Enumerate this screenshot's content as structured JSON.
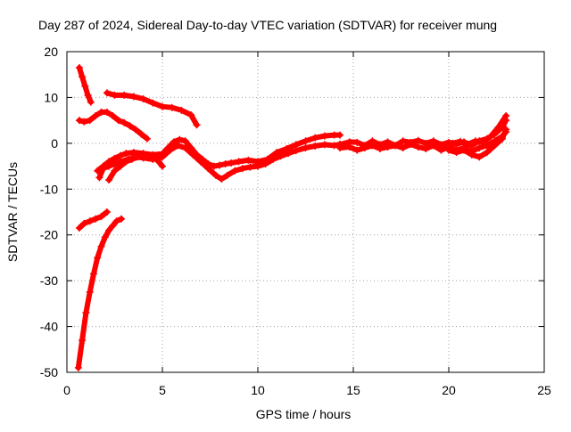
{
  "chart_data": {
    "type": "scatter",
    "title": "Day 287 of 2024, Sidereal Day-to-day VTEC variation (SDTVAR) for receiver mung",
    "xlabel": "GPS time / hours",
    "ylabel": "SDTVAR / TECUs",
    "xlim": [
      0,
      25
    ],
    "ylim": [
      -50,
      20
    ],
    "xticks": [
      0,
      5,
      10,
      15,
      20,
      25
    ],
    "yticks": [
      -50,
      -40,
      -30,
      -20,
      -10,
      0,
      10,
      20
    ],
    "grid": true,
    "legend": "none",
    "colors": {
      "series": "#ff0000",
      "grid": "#a0a0a0",
      "axis": "#000000"
    },
    "series": [
      {
        "x": [
          0.65,
          0.8,
          0.95,
          1.1,
          1.25
        ],
        "y": [
          16.5,
          14.5,
          12.5,
          10.5,
          9.0
        ]
      },
      {
        "x": [
          0.65,
          0.9,
          1.2,
          1.5,
          1.8,
          2.1,
          2.4,
          2.7,
          3.0,
          3.3,
          3.6,
          3.9,
          4.2
        ],
        "y": [
          5.0,
          4.7,
          5.0,
          6.0,
          6.8,
          6.8,
          6.0,
          5.0,
          4.5,
          3.8,
          3.0,
          2.0,
          1.0
        ]
      },
      {
        "x": [
          2.1,
          2.5,
          3.0,
          3.5,
          4.0,
          4.5,
          5.0,
          5.5,
          6.0,
          6.5,
          6.8
        ],
        "y": [
          11.0,
          10.5,
          10.5,
          10.2,
          9.7,
          8.8,
          8.0,
          7.8,
          7.2,
          6.2,
          4.0
        ]
      },
      {
        "x": [
          0.65,
          0.9,
          1.2,
          1.5,
          1.8,
          2.1
        ],
        "y": [
          -18.5,
          -17.5,
          -17.0,
          -16.5,
          -16.0,
          -15.0
        ]
      },
      {
        "x": [
          0.6,
          0.8,
          1.0,
          1.2,
          1.4,
          1.6,
          1.8,
          2.0,
          2.2,
          2.4,
          2.6,
          2.85
        ],
        "y": [
          -49.0,
          -43.0,
          -37.0,
          -32.5,
          -28.5,
          -25.0,
          -22.5,
          -20.5,
          -19.0,
          -18.0,
          -17.0,
          -16.5
        ]
      },
      {
        "x": [
          1.6,
          1.9,
          2.2,
          2.5,
          2.8,
          3.1,
          3.5,
          4.0,
          4.5,
          5.0,
          5.3,
          5.6,
          5.9,
          6.2,
          6.5,
          6.8,
          7.1,
          7.4,
          7.7,
          8.0,
          8.3,
          8.6,
          9.0,
          9.5,
          10.0,
          10.5,
          11.0,
          11.5,
          12.0,
          12.5,
          13.0,
          13.5,
          14.0,
          14.3
        ],
        "y": [
          -6.0,
          -5.0,
          -4.0,
          -3.3,
          -2.7,
          -2.2,
          -2.0,
          -2.2,
          -2.5,
          -2.3,
          -1.0,
          0.3,
          0.8,
          0.5,
          -1.0,
          -2.5,
          -3.5,
          -4.5,
          -5.0,
          -4.8,
          -4.5,
          -4.3,
          -4.0,
          -3.7,
          -4.0,
          -3.5,
          -2.0,
          -1.2,
          -0.3,
          0.5,
          1.2,
          1.6,
          1.8,
          1.8
        ]
      },
      {
        "x": [
          1.7,
          1.9,
          2.2,
          2.5,
          2.8,
          3.2,
          3.6,
          4.0,
          4.5,
          5.0,
          5.4,
          5.8,
          6.2,
          6.6,
          7.0,
          7.4,
          7.8,
          8.1,
          8.4,
          8.8,
          9.2,
          9.6,
          10.0,
          10.4,
          10.8,
          11.2,
          11.6,
          12.0,
          12.5,
          13.0,
          13.5,
          14.0,
          14.3
        ],
        "y": [
          -7.5,
          -5.5,
          -5.0,
          -4.5,
          -4.0,
          -3.5,
          -3.0,
          -3.2,
          -3.5,
          -3.0,
          -1.5,
          -0.5,
          -1.0,
          -2.5,
          -4.0,
          -5.5,
          -7.0,
          -7.8,
          -7.0,
          -6.0,
          -5.5,
          -5.2,
          -5.0,
          -4.5,
          -3.5,
          -2.8,
          -2.2,
          -1.6,
          -1.0,
          -0.6,
          -0.3,
          -0.5,
          -0.2
        ]
      },
      {
        "x": [
          2.2,
          2.5,
          2.8,
          3.1,
          3.4,
          3.7,
          4.0,
          4.3,
          4.6,
          4.8,
          5.0
        ],
        "y": [
          -8.0,
          -6.0,
          -5.0,
          -4.0,
          -3.5,
          -3.0,
          -3.0,
          -3.2,
          -3.2,
          -4.0,
          -5.0
        ]
      },
      {
        "x": [
          14.3,
          14.8,
          15.2,
          15.6,
          16.0,
          16.4,
          16.8,
          17.2,
          17.6,
          18.0,
          18.4,
          18.8,
          19.2,
          19.6,
          20.0,
          20.4,
          20.8,
          21.2,
          21.6,
          22.0,
          22.4,
          22.8,
          23.0
        ],
        "y": [
          -0.3,
          0.3,
          0.2,
          -0.5,
          0.5,
          -0.3,
          0.3,
          -0.5,
          0.5,
          0.2,
          0.6,
          0.0,
          0.5,
          -0.3,
          0.2,
          -0.2,
          0.3,
          -0.5,
          0.5,
          1.0,
          2.0,
          3.5,
          5.0
        ]
      },
      {
        "x": [
          14.3,
          14.8,
          15.2,
          15.6,
          16.0,
          16.4,
          16.8,
          17.2,
          17.6,
          18.0,
          18.4,
          18.8,
          19.2,
          19.6,
          20.0,
          20.4,
          20.8,
          21.2,
          21.6,
          22.0,
          22.4,
          22.8,
          23.0
        ],
        "y": [
          -1.0,
          -0.8,
          -1.5,
          -1.0,
          -0.5,
          -1.2,
          -0.8,
          -0.5,
          -1.0,
          -0.2,
          -0.8,
          -1.2,
          -0.5,
          -1.5,
          -0.8,
          -1.5,
          -1.0,
          -1.8,
          -1.0,
          -0.5,
          0.5,
          1.5,
          2.5
        ]
      },
      {
        "x": [
          20.0,
          20.4,
          20.8,
          21.2,
          21.6,
          22.0,
          22.4,
          22.8,
          23.0
        ],
        "y": [
          -1.5,
          -2.0,
          -1.5,
          -2.5,
          -3.0,
          -2.0,
          -0.5,
          1.0,
          3.0
        ]
      },
      {
        "x": [
          20.2,
          20.6,
          21.0,
          21.4,
          21.8,
          22.2,
          22.6,
          23.0
        ],
        "y": [
          0.0,
          0.4,
          -0.2,
          0.5,
          0.2,
          1.5,
          3.5,
          6.0
        ]
      }
    ]
  }
}
